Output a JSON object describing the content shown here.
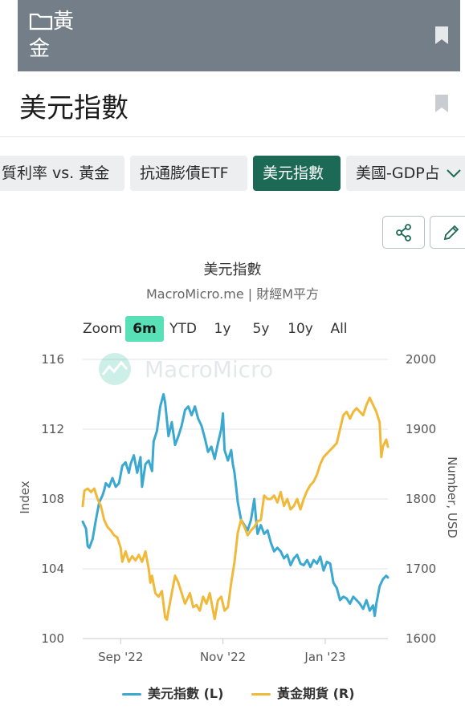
{
  "header": {
    "folder_label": "黃金",
    "folder_icon": "folder-icon",
    "bookmark_icon": "bookmark-icon",
    "bar_color": "#747e88"
  },
  "page": {
    "title": "美元指數"
  },
  "tabs": [
    {
      "label": "質利率 vs. 黃金",
      "active": false
    },
    {
      "label": "抗通膨債ETF",
      "active": false
    },
    {
      "label": "美元指數",
      "active": true
    },
    {
      "label": "美國-GDP占",
      "active": false
    }
  ],
  "tools": {
    "share_icon": "share-icon",
    "edit_icon": "pencil-icon",
    "more_icon": "chevron-down-icon"
  },
  "zoom": {
    "label": "Zoom",
    "options": [
      "6m",
      "YTD",
      "1y",
      "5y",
      "10y",
      "All"
    ],
    "selected": "6m"
  },
  "watermark": "MacroMicro",
  "legend": [
    {
      "label": "美元指數 (L)",
      "color": "#3aa8d1"
    },
    {
      "label": "黃金期貨 (R)",
      "color": "#f0b93a"
    }
  ],
  "chart_data": {
    "type": "line",
    "title": "美元指數",
    "subtitle": "MacroMicro.me | 財經M平方",
    "y_left": {
      "label": "Index",
      "range": [
        100,
        116
      ],
      "ticks": [
        100,
        104,
        108,
        112,
        116
      ]
    },
    "y_right": {
      "label": "Number, USD",
      "range": [
        1600,
        2000
      ],
      "ticks": [
        1600,
        1700,
        1800,
        1900,
        2000
      ]
    },
    "x_ticks": [
      "Sep '22",
      "Nov '22",
      "Jan '23"
    ],
    "x_tick_positions": [
      23,
      85,
      147
    ],
    "x_range": [
      0,
      185
    ],
    "grid": true,
    "legend_position": "bottom",
    "series": [
      {
        "name": "美元指數 (L)",
        "axis": "left",
        "color": "#3aa8d1",
        "points": [
          [
            0,
            106.7
          ],
          [
            2,
            106.3
          ],
          [
            3,
            105.3
          ],
          [
            4,
            105.2
          ],
          [
            6,
            105.7
          ],
          [
            8,
            106.8
          ],
          [
            10,
            107.8
          ],
          [
            12,
            108.2
          ],
          [
            13,
            108.5
          ],
          [
            14,
            108.9
          ],
          [
            16,
            108.7
          ],
          [
            18,
            109.2
          ],
          [
            20,
            108.7
          ],
          [
            22,
            108.9
          ],
          [
            24,
            109.9
          ],
          [
            26,
            110.1
          ],
          [
            28,
            109.5
          ],
          [
            29,
            110.0
          ],
          [
            31,
            110.5
          ],
          [
            33,
            109.5
          ],
          [
            35,
            110.4
          ],
          [
            36,
            108.7
          ],
          [
            38,
            110.0
          ],
          [
            40,
            110.2
          ],
          [
            42,
            109.6
          ],
          [
            43,
            111.3
          ],
          [
            45,
            111.9
          ],
          [
            47,
            113.3
          ],
          [
            49,
            114.0
          ],
          [
            50,
            113.5
          ],
          [
            52,
            111.6
          ],
          [
            54,
            112.4
          ],
          [
            56,
            111.1
          ],
          [
            58,
            111.6
          ],
          [
            60,
            112.2
          ],
          [
            62,
            113.1
          ],
          [
            64,
            113.3
          ],
          [
            66,
            112.8
          ],
          [
            68,
            113.3
          ],
          [
            70,
            112.6
          ],
          [
            72,
            112.2
          ],
          [
            74,
            111.5
          ],
          [
            76,
            110.7
          ],
          [
            78,
            111.0
          ],
          [
            80,
            110.3
          ],
          [
            82,
            111.2
          ],
          [
            84,
            112.0
          ],
          [
            85,
            112.9
          ],
          [
            86,
            110.8
          ],
          [
            88,
            110.2
          ],
          [
            90,
            110.8
          ],
          [
            91,
            110.0
          ],
          [
            92,
            109.5
          ],
          [
            93,
            108.7
          ],
          [
            94,
            107.8
          ],
          [
            96,
            106.8
          ],
          [
            98,
            106.5
          ],
          [
            100,
            106.2
          ],
          [
            102,
            106.8
          ],
          [
            103,
            107.4
          ],
          [
            104,
            108.0
          ],
          [
            105,
            106.9
          ],
          [
            106,
            106.0
          ],
          [
            108,
            106.5
          ],
          [
            110,
            106.0
          ],
          [
            112,
            106.2
          ],
          [
            114,
            105.5
          ],
          [
            116,
            105.0
          ],
          [
            118,
            105.2
          ],
          [
            120,
            105.0
          ],
          [
            122,
            104.6
          ],
          [
            124,
            104.8
          ],
          [
            126,
            104.2
          ],
          [
            128,
            104.6
          ],
          [
            130,
            104.8
          ],
          [
            132,
            104.3
          ],
          [
            134,
            104.2
          ],
          [
            136,
            104.5
          ],
          [
            138,
            104.1
          ],
          [
            140,
            104.5
          ],
          [
            142,
            104.3
          ],
          [
            144,
            104.7
          ],
          [
            146,
            103.9
          ],
          [
            148,
            104.4
          ],
          [
            150,
            104.3
          ],
          [
            152,
            103.2
          ],
          [
            154,
            102.9
          ],
          [
            156,
            102.2
          ],
          [
            158,
            102.4
          ],
          [
            160,
            102.3
          ],
          [
            162,
            102.0
          ],
          [
            164,
            102.4
          ],
          [
            166,
            102.2
          ],
          [
            168,
            102.0
          ],
          [
            170,
            101.7
          ],
          [
            172,
            102.2
          ],
          [
            174,
            101.6
          ],
          [
            176,
            101.9
          ],
          [
            177,
            101.3
          ],
          [
            178,
            102.0
          ],
          [
            180,
            103.0
          ],
          [
            182,
            103.4
          ],
          [
            184,
            103.6
          ],
          [
            185,
            103.5
          ]
        ]
      },
      {
        "name": "黃金期貨 (R)",
        "axis": "right",
        "color": "#f0b93a",
        "points": [
          [
            0,
            1790
          ],
          [
            1,
            1812
          ],
          [
            3,
            1815
          ],
          [
            5,
            1810
          ],
          [
            7,
            1815
          ],
          [
            9,
            1800
          ],
          [
            11,
            1790
          ],
          [
            13,
            1770
          ],
          [
            15,
            1760
          ],
          [
            17,
            1755
          ],
          [
            19,
            1748
          ],
          [
            21,
            1745
          ],
          [
            23,
            1730
          ],
          [
            24,
            1710
          ],
          [
            26,
            1725
          ],
          [
            28,
            1710
          ],
          [
            30,
            1718
          ],
          [
            32,
            1712
          ],
          [
            34,
            1720
          ],
          [
            36,
            1710
          ],
          [
            38,
            1725
          ],
          [
            40,
            1700
          ],
          [
            41,
            1680
          ],
          [
            42,
            1690
          ],
          [
            44,
            1665
          ],
          [
            46,
            1660
          ],
          [
            48,
            1668
          ],
          [
            50,
            1630
          ],
          [
            51,
            1627
          ],
          [
            52,
            1640
          ],
          [
            54,
            1665
          ],
          [
            56,
            1690
          ],
          [
            58,
            1680
          ],
          [
            60,
            1665
          ],
          [
            62,
            1650
          ],
          [
            64,
            1660
          ],
          [
            65,
            1665
          ],
          [
            67,
            1645
          ],
          [
            69,
            1648
          ],
          [
            71,
            1640
          ],
          [
            73,
            1660
          ],
          [
            75,
            1650
          ],
          [
            77,
            1665
          ],
          [
            79,
            1640
          ],
          [
            80,
            1628
          ],
          [
            82,
            1655
          ],
          [
            84,
            1660
          ],
          [
            86,
            1640
          ],
          [
            88,
            1645
          ],
          [
            90,
            1680
          ],
          [
            92,
            1710
          ],
          [
            94,
            1752
          ],
          [
            96,
            1770
          ],
          [
            98,
            1760
          ],
          [
            100,
            1748
          ],
          [
            102,
            1755
          ],
          [
            104,
            1760
          ],
          [
            106,
            1768
          ],
          [
            108,
            1770
          ],
          [
            110,
            1805
          ],
          [
            112,
            1800
          ],
          [
            114,
            1800
          ],
          [
            116,
            1805
          ],
          [
            118,
            1795
          ],
          [
            120,
            1810
          ],
          [
            122,
            1790
          ],
          [
            124,
            1800
          ],
          [
            126,
            1785
          ],
          [
            128,
            1790
          ],
          [
            130,
            1800
          ],
          [
            132,
            1785
          ],
          [
            134,
            1800
          ],
          [
            136,
            1812
          ],
          [
            138,
            1820
          ],
          [
            140,
            1825
          ],
          [
            142,
            1835
          ],
          [
            144,
            1850
          ],
          [
            146,
            1860
          ],
          [
            148,
            1865
          ],
          [
            150,
            1870
          ],
          [
            152,
            1875
          ],
          [
            154,
            1880
          ],
          [
            156,
            1900
          ],
          [
            158,
            1920
          ],
          [
            160,
            1925
          ],
          [
            162,
            1915
          ],
          [
            164,
            1925
          ],
          [
            166,
            1930
          ],
          [
            168,
            1925
          ],
          [
            170,
            1920
          ],
          [
            172,
            1935
          ],
          [
            174,
            1945
          ],
          [
            176,
            1935
          ],
          [
            178,
            1925
          ],
          [
            180,
            1910
          ],
          [
            181,
            1860
          ],
          [
            182,
            1875
          ],
          [
            184,
            1885
          ],
          [
            185,
            1875
          ]
        ]
      }
    ]
  }
}
